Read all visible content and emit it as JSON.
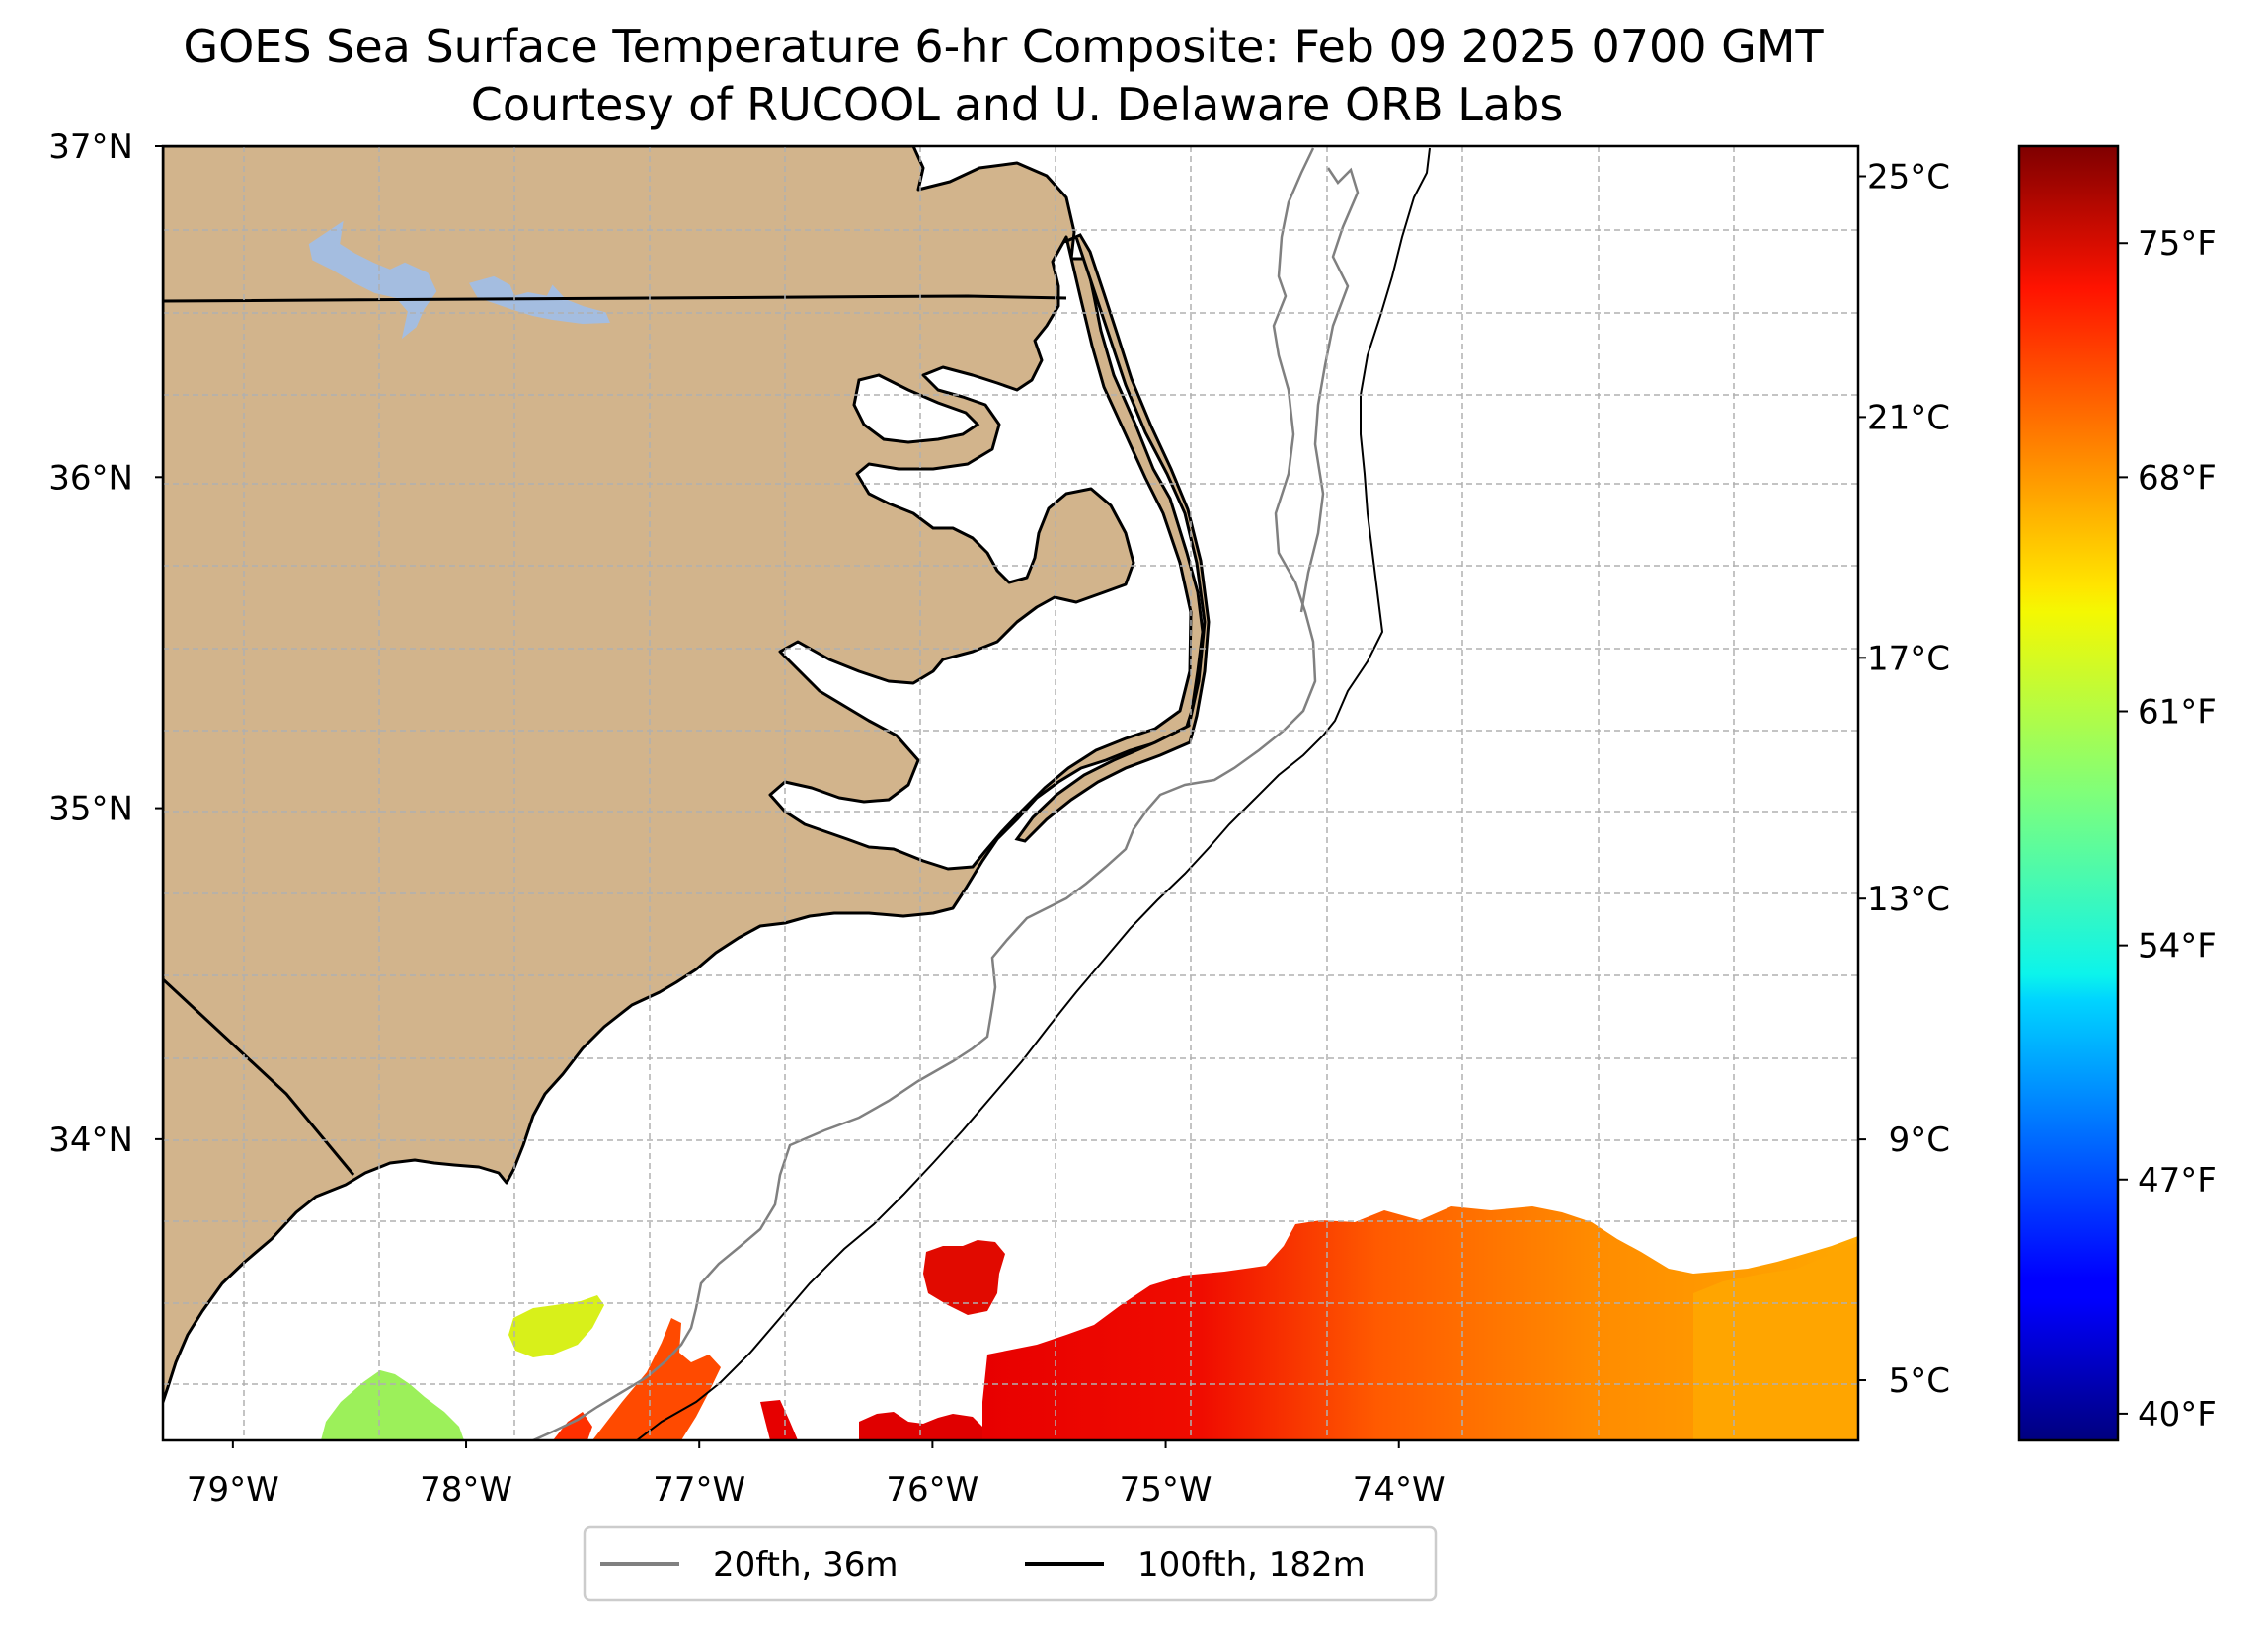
{
  "title": {
    "line1": "GOES Sea Surface Temperature 6-hr Composite: Feb 09 2025 0700 GMT",
    "line2": "Courtesy of RUCOOL and U. Delaware ORB Labs"
  },
  "map": {
    "extent": {
      "lon_min": -79.3,
      "lon_max": -72.03,
      "lat_min": 33.09,
      "lat_max": 37.0
    },
    "lon_ticks": [
      {
        "value": -79,
        "label": "79°W"
      },
      {
        "value": -78,
        "label": "78°W"
      },
      {
        "value": -77,
        "label": "77°W"
      },
      {
        "value": -76,
        "label": "76°W"
      },
      {
        "value": -75,
        "label": "75°W"
      },
      {
        "value": -74,
        "label": "74°W"
      }
    ],
    "lat_ticks": [
      {
        "value": 37,
        "label": "37°N"
      },
      {
        "value": 36,
        "label": "36°N"
      },
      {
        "value": 35,
        "label": "35°N"
      },
      {
        "value": 34,
        "label": "34°N"
      }
    ],
    "grid": true,
    "colors": {
      "land": "#d2b48c",
      "lake": "#a4bde0",
      "ocean": "#ffffff",
      "coast": "#000000"
    }
  },
  "colorbar": {
    "cmap": "jet",
    "celsius_range": [
      4.0,
      25.5
    ],
    "celsius_ticks": [
      {
        "value": 25,
        "label": "25°C"
      },
      {
        "value": 21,
        "label": "21°C"
      },
      {
        "value": 17,
        "label": "17°C"
      },
      {
        "value": 13,
        "label": "13°C"
      },
      {
        "value": 9,
        "label": "9°C"
      },
      {
        "value": 5,
        "label": "5°C"
      }
    ],
    "fahrenheit_ticks": [
      {
        "value": 75,
        "label": "75°F"
      },
      {
        "value": 68,
        "label": "68°F"
      },
      {
        "value": 61,
        "label": "61°F"
      },
      {
        "value": 54,
        "label": "54°F"
      },
      {
        "value": 47,
        "label": "47°F"
      },
      {
        "value": 40,
        "label": "40°F"
      }
    ]
  },
  "legend": {
    "position": "bottom-center",
    "items": [
      {
        "label": "20fth, 36m",
        "color": "#808080"
      },
      {
        "label": "100fth, 182m",
        "color": "#000000"
      }
    ]
  }
}
